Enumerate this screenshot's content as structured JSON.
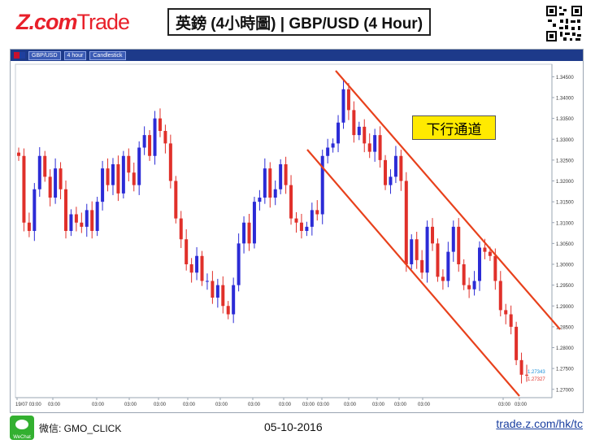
{
  "brand": {
    "logo_text": "Z.com",
    "logo_suffix": "Trade",
    "logo_color": "#e8202a"
  },
  "title": "英鎊 (4小時圖) | GBP/USD  (4 Hour)",
  "toolbar": {
    "symbol": "GBP/USD",
    "interval": "4 hour",
    "style": "Candlestick"
  },
  "callout": "下行通道",
  "footer": {
    "wechat_badge": "WeChat",
    "wechat": "微信: GMO_CLICK",
    "date": "05-10-2016",
    "url": "trade.z.com/hk/tc"
  },
  "colors": {
    "up": "#2b2bd6",
    "down": "#e0302a",
    "channel": "#e8411c"
  },
  "chart_data": {
    "type": "candlestick",
    "ylim": [
      1.268,
      1.348
    ],
    "y_ticks": [
      "1.34500",
      "1.34000",
      "1.33500",
      "1.33000",
      "1.32500",
      "1.32000",
      "1.31500",
      "1.31000",
      "1.30500",
      "1.30000",
      "1.29500",
      "1.29000",
      "1.28500",
      "1.28000",
      "1.27500",
      "1.27000"
    ],
    "x_ticks": [
      "19/07 03:00",
      "03:00",
      "03:00",
      "03:00",
      "03:00",
      "03:00",
      "03:00",
      "03:00",
      "03:00",
      "03:00",
      "03:00",
      "03:00",
      "03:00",
      "03:00",
      "03:00",
      "03:00",
      "03:00"
    ],
    "close_labels": [
      "1.27343",
      "1.27327"
    ],
    "series": {
      "close": [
        1.326,
        1.31,
        1.308,
        1.318,
        1.326,
        1.321,
        1.316,
        1.323,
        1.318,
        1.308,
        1.312,
        1.31,
        1.309,
        1.313,
        1.308,
        1.315,
        1.323,
        1.319,
        1.324,
        1.317,
        1.326,
        1.322,
        1.319,
        1.328,
        1.331,
        1.326,
        1.335,
        1.332,
        1.329,
        1.32,
        1.311,
        1.306,
        1.3,
        1.298,
        1.302,
        1.296,
        1.296,
        1.292,
        1.295,
        1.29,
        1.288,
        1.295,
        1.305,
        1.31,
        1.305,
        1.315,
        1.316,
        1.323,
        1.316,
        1.318,
        1.324,
        1.319,
        1.311,
        1.31,
        1.308,
        1.309,
        1.313,
        1.312,
        1.326,
        1.328,
        1.329,
        1.334,
        1.342,
        1.337,
        1.331,
        1.333,
        1.329,
        1.327,
        1.331,
        1.325,
        1.319,
        1.321,
        1.326,
        1.32,
        1.3,
        1.306,
        1.301,
        1.298,
        1.309,
        1.305,
        1.297,
        1.296,
        1.303,
        1.309,
        1.3,
        1.295,
        1.294,
        1.296,
        1.304,
        1.303,
        1.302,
        1.296,
        1.289,
        1.288,
        1.285,
        1.277,
        1.2735,
        1.2733
      ]
    }
  }
}
